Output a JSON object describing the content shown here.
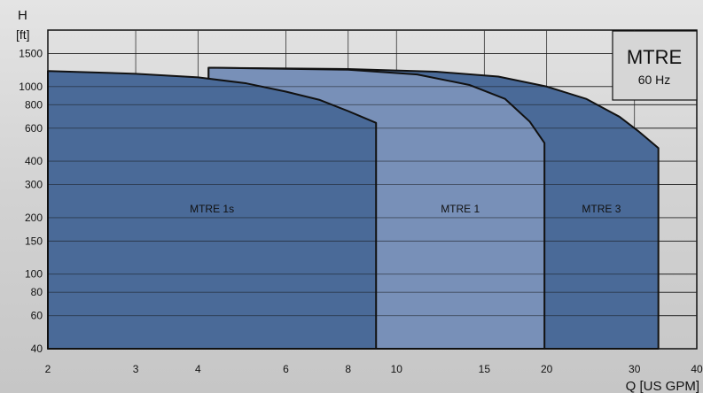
{
  "chart_data": {
    "type": "area",
    "title": "MTRE",
    "subtitle": "60 Hz",
    "ylabel_symbol": "H",
    "ylabel_unit": "[ft]",
    "xlabel": "Q [US GPM]",
    "x_scale": "log",
    "y_scale": "log",
    "xlim": [
      2,
      40
    ],
    "ylim": [
      40,
      2000
    ],
    "x_ticks": [
      2,
      3,
      4,
      6,
      8,
      10,
      15,
      20,
      30,
      40
    ],
    "y_ticks": [
      40,
      60,
      80,
      100,
      150,
      200,
      300,
      400,
      600,
      800,
      1000,
      1500
    ],
    "grid": true,
    "series": [
      {
        "name": "MTRE 3",
        "color": "#4a6a98",
        "boundary": [
          [
            4.2,
            1260
          ],
          [
            8,
            1240
          ],
          [
            12,
            1200
          ],
          [
            16,
            1130
          ],
          [
            20,
            1000
          ],
          [
            24,
            860
          ],
          [
            28,
            690
          ],
          [
            30.5,
            580
          ],
          [
            33.5,
            470
          ],
          [
            33.5,
            40
          ]
        ]
      },
      {
        "name": "MTRE 1",
        "color": "#7890b8",
        "boundary": [
          [
            4.2,
            1070
          ],
          [
            4.2,
            1260
          ],
          [
            8,
            1230
          ],
          [
            11,
            1160
          ],
          [
            14,
            1020
          ],
          [
            16.5,
            860
          ],
          [
            18.5,
            650
          ],
          [
            19.8,
            500
          ],
          [
            19.8,
            40
          ]
        ]
      },
      {
        "name": "MTRE 1s",
        "color": "#4a6a98",
        "boundary": [
          [
            2,
            1210
          ],
          [
            3,
            1170
          ],
          [
            4,
            1120
          ],
          [
            5,
            1040
          ],
          [
            6,
            940
          ],
          [
            7,
            850
          ],
          [
            8,
            740
          ],
          [
            9.1,
            640
          ],
          [
            9.1,
            40
          ]
        ]
      }
    ]
  }
}
